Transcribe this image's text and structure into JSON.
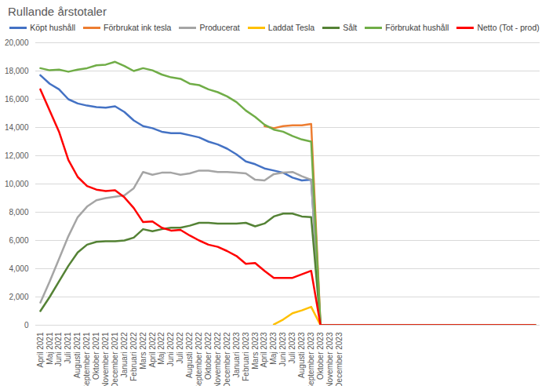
{
  "chart_data": {
    "type": "line",
    "title": "Rullande årstotaler",
    "categories": [
      "April 2021",
      "Maj 2021",
      "Juni 2021",
      "Juli 2021",
      "Augusti 2021",
      "September 2021",
      "Oktober 2021",
      "November 2021",
      "December 2021",
      "Januari 2022",
      "Februari 2022",
      "Mars 2022",
      "April 2022",
      "Maj 2022",
      "Juni 2022",
      "Juli 2022",
      "Augusti 2022",
      "September 2022",
      "Oktober 2022",
      "November 2022",
      "December 2022",
      "Januari 2023",
      "Februari 2023",
      "Mars 2023",
      "April 2023",
      "Maj 2023",
      "Juni 2023",
      "Juli 2023",
      "Augusti 2023",
      "September 2023",
      "Oktober 2023",
      "November 2023",
      "December 2023",
      null,
      null,
      null,
      null,
      null,
      null,
      null,
      null,
      null,
      null,
      null,
      null,
      null,
      null,
      null,
      null,
      null,
      null,
      null,
      null,
      null
    ],
    "series": [
      {
        "name": "Köpt hushåll",
        "color": "#4472C4",
        "values": [
          17700,
          17100,
          16700,
          16000,
          15700,
          15550,
          15450,
          15400,
          15500,
          15100,
          14500,
          14100,
          13950,
          13700,
          13600,
          13600,
          13450,
          13300,
          13000,
          12800,
          12500,
          12100,
          11600,
          11400,
          11100,
          10950,
          10800,
          10450,
          10250,
          10300,
          0,
          0,
          0,
          0,
          0,
          0,
          0,
          0,
          0,
          0,
          0,
          0,
          0,
          0,
          0,
          0,
          0,
          0,
          0,
          0,
          0,
          0,
          0,
          0
        ]
      },
      {
        "name": "Förbrukat ink tesla",
        "color": "#ED7D31",
        "values": [
          null,
          null,
          null,
          null,
          null,
          null,
          null,
          null,
          null,
          null,
          null,
          null,
          null,
          null,
          null,
          null,
          null,
          null,
          null,
          null,
          null,
          null,
          null,
          null,
          14100,
          13950,
          14100,
          14150,
          14150,
          14250,
          0,
          0,
          0,
          0,
          0,
          0,
          0,
          0,
          0,
          0,
          0,
          0,
          0,
          0,
          0,
          0,
          0,
          0,
          0,
          0,
          0,
          0,
          0,
          0
        ]
      },
      {
        "name": "Producerat",
        "color": "#A5A5A5",
        "values": [
          1600,
          3100,
          4700,
          6300,
          7650,
          8400,
          8850,
          9000,
          9100,
          9200,
          9700,
          10850,
          10650,
          10800,
          10800,
          10650,
          10750,
          10950,
          10950,
          10850,
          10850,
          10800,
          10750,
          10300,
          10250,
          10700,
          10800,
          10850,
          10550,
          10300,
          0,
          0,
          0,
          0,
          0,
          0,
          0,
          0,
          0,
          0,
          0,
          0,
          0,
          0,
          0,
          0,
          0,
          0,
          0,
          0,
          0,
          0,
          0,
          0
        ]
      },
      {
        "name": "Laddat Tesla",
        "color": "#FFC000",
        "values": [
          null,
          null,
          null,
          null,
          null,
          null,
          null,
          null,
          null,
          null,
          null,
          null,
          null,
          null,
          null,
          null,
          null,
          null,
          null,
          null,
          null,
          null,
          null,
          null,
          null,
          50,
          400,
          850,
          1050,
          1300,
          0,
          0,
          0,
          0,
          0,
          0,
          0,
          0,
          0,
          0,
          0,
          0,
          0,
          0,
          0,
          0,
          0,
          0,
          0,
          0,
          0,
          0,
          0,
          0
        ]
      },
      {
        "name": "Sålt",
        "color": "#548235",
        "values": [
          1000,
          2000,
          3100,
          4200,
          5150,
          5700,
          5900,
          5950,
          5950,
          6000,
          6200,
          6800,
          6650,
          6800,
          6900,
          6900,
          7050,
          7250,
          7250,
          7200,
          7200,
          7200,
          7250,
          7000,
          7200,
          7700,
          7900,
          7900,
          7700,
          7650,
          0,
          0,
          0,
          0,
          0,
          0,
          0,
          0,
          0,
          0,
          0,
          0,
          0,
          0,
          0,
          0,
          0,
          0,
          0,
          0,
          0,
          0,
          0,
          0
        ]
      },
      {
        "name": "Förbrukat hushåll",
        "color": "#70AD47",
        "values": [
          18200,
          18050,
          18100,
          17950,
          18100,
          18200,
          18400,
          18450,
          18650,
          18350,
          18000,
          18200,
          18050,
          17750,
          17550,
          17450,
          17100,
          17000,
          16700,
          16500,
          16200,
          15800,
          15200,
          14750,
          14200,
          13850,
          13700,
          13400,
          13150,
          13000,
          0,
          0,
          0,
          0,
          0,
          0,
          0,
          0,
          0,
          0,
          0,
          0,
          0,
          0,
          0,
          0,
          0,
          0,
          0,
          0,
          0,
          0,
          0,
          0
        ]
      },
      {
        "name": "Netto (Tot - prod)",
        "color": "#FF0000",
        "values": [
          16700,
          15200,
          13700,
          11700,
          10500,
          9850,
          9600,
          9500,
          9550,
          9050,
          8300,
          7300,
          7350,
          6900,
          6700,
          6750,
          6350,
          6000,
          5700,
          5550,
          5250,
          4900,
          4350,
          4400,
          3850,
          3350,
          3350,
          3350,
          3600,
          3850,
          0,
          0,
          0,
          0,
          0,
          0,
          0,
          0,
          0,
          0,
          0,
          0,
          0,
          0,
          0,
          0,
          0,
          0,
          0,
          0,
          0,
          0,
          0,
          0
        ]
      }
    ],
    "ylim": [
      0,
      20000
    ],
    "yticks": [
      0,
      2000,
      4000,
      6000,
      8000,
      10000,
      12000,
      14000,
      16000,
      18000,
      20000
    ],
    "grid": true,
    "legend": "top"
  }
}
